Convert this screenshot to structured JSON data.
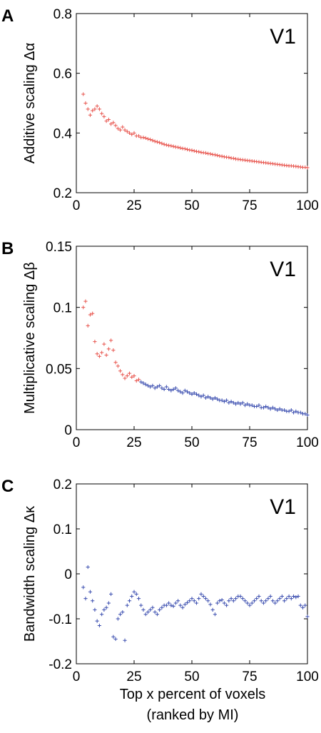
{
  "figure": {
    "xlabel_line1": "Top x percent of voxels",
    "xlabel_line2": "(ranked by MI)"
  },
  "colors": {
    "red": "#e8564f",
    "blue": "#3c4fb0",
    "axis": "#000000"
  },
  "chart_data": [
    {
      "type": "scatter",
      "panel_letter": "A",
      "region": "V1",
      "ylabel": "Additive scaling Δα",
      "xlim": [
        0,
        100
      ],
      "ylim": [
        0.2,
        0.8
      ],
      "xticks": [
        0,
        25,
        50,
        75,
        100
      ],
      "xtick_labels": [
        "0",
        "25",
        "50",
        "75",
        "100"
      ],
      "yticks": [
        0.2,
        0.4,
        0.6,
        0.8
      ],
      "ytick_labels": [
        "0.2",
        "0.4",
        "0.6",
        "0.8"
      ],
      "marker": "+",
      "series": [
        {
          "color": "red",
          "x": [
            3,
            4,
            5,
            6,
            7,
            8,
            9,
            10,
            11,
            12,
            13,
            14,
            15,
            16,
            17,
            18,
            19,
            20,
            21,
            22,
            23,
            24,
            25,
            26,
            27,
            28,
            29,
            30,
            31,
            32,
            33,
            34,
            35,
            36,
            37,
            38,
            39,
            40,
            41,
            42,
            43,
            44,
            45,
            46,
            47,
            48,
            49,
            50,
            51,
            52,
            53,
            54,
            55,
            56,
            57,
            58,
            59,
            60,
            61,
            62,
            63,
            64,
            65,
            66,
            67,
            68,
            69,
            70,
            71,
            72,
            73,
            74,
            75,
            76,
            77,
            78,
            79,
            80,
            81,
            82,
            83,
            84,
            85,
            86,
            87,
            88,
            89,
            90,
            91,
            92,
            93,
            94,
            95,
            96,
            97,
            98,
            99,
            100
          ],
          "y": [
            0.53,
            0.5,
            0.48,
            0.46,
            0.475,
            0.48,
            0.49,
            0.48,
            0.465,
            0.455,
            0.44,
            0.445,
            0.43,
            0.435,
            0.425,
            0.415,
            0.41,
            0.42,
            0.41,
            0.405,
            0.4,
            0.395,
            0.4,
            0.39,
            0.39,
            0.385,
            0.385,
            0.383,
            0.38,
            0.378,
            0.375,
            0.372,
            0.37,
            0.368,
            0.365,
            0.362,
            0.36,
            0.358,
            0.357,
            0.355,
            0.353,
            0.352,
            0.35,
            0.348,
            0.347,
            0.345,
            0.343,
            0.342,
            0.34,
            0.338,
            0.337,
            0.335,
            0.334,
            0.333,
            0.331,
            0.33,
            0.328,
            0.327,
            0.325,
            0.323,
            0.322,
            0.32,
            0.319,
            0.318,
            0.316,
            0.315,
            0.313,
            0.312,
            0.311,
            0.31,
            0.309,
            0.308,
            0.307,
            0.306,
            0.305,
            0.304,
            0.303,
            0.302,
            0.301,
            0.3,
            0.299,
            0.298,
            0.297,
            0.296,
            0.295,
            0.294,
            0.293,
            0.292,
            0.291,
            0.29,
            0.29,
            0.289,
            0.288,
            0.287,
            0.286,
            0.285,
            0.285,
            0.284
          ]
        }
      ]
    },
    {
      "type": "scatter",
      "panel_letter": "B",
      "region": "V1",
      "ylabel": "Multiplicative scaling Δβ",
      "xlim": [
        0,
        100
      ],
      "ylim": [
        0,
        0.15
      ],
      "xticks": [
        0,
        25,
        50,
        75,
        100
      ],
      "xtick_labels": [
        "0",
        "25",
        "50",
        "75",
        "100"
      ],
      "yticks": [
        0,
        0.05,
        0.1,
        0.15
      ],
      "ytick_labels": [
        "0",
        "0.05",
        "0.1",
        "0.15"
      ],
      "marker": "+",
      "series": [
        {
          "color": "red",
          "x": [
            3,
            4,
            5,
            6,
            7,
            8,
            9,
            10,
            11,
            12,
            13,
            14,
            15,
            16,
            17,
            18,
            19,
            20,
            21,
            22,
            23,
            24,
            25,
            26,
            27
          ],
          "y": [
            0.1,
            0.105,
            0.085,
            0.094,
            0.095,
            0.072,
            0.062,
            0.06,
            0.063,
            0.07,
            0.061,
            0.066,
            0.073,
            0.065,
            0.055,
            0.052,
            0.048,
            0.045,
            0.042,
            0.044,
            0.046,
            0.043,
            0.044,
            0.04,
            0.041
          ]
        },
        {
          "color": "blue",
          "x": [
            28,
            29,
            30,
            31,
            32,
            33,
            34,
            35,
            36,
            37,
            38,
            39,
            40,
            41,
            42,
            43,
            44,
            45,
            46,
            47,
            48,
            49,
            50,
            51,
            52,
            53,
            54,
            55,
            56,
            57,
            58,
            59,
            60,
            61,
            62,
            63,
            64,
            65,
            66,
            67,
            68,
            69,
            70,
            71,
            72,
            73,
            74,
            75,
            76,
            77,
            78,
            79,
            80,
            81,
            82,
            83,
            84,
            85,
            86,
            87,
            88,
            89,
            90,
            91,
            92,
            93,
            94,
            95,
            96,
            97,
            98,
            99,
            100
          ],
          "y": [
            0.039,
            0.038,
            0.037,
            0.036,
            0.035,
            0.036,
            0.034,
            0.035,
            0.036,
            0.034,
            0.033,
            0.035,
            0.033,
            0.032,
            0.033,
            0.034,
            0.032,
            0.031,
            0.03,
            0.032,
            0.031,
            0.03,
            0.029,
            0.03,
            0.029,
            0.028,
            0.027,
            0.028,
            0.026,
            0.027,
            0.026,
            0.025,
            0.026,
            0.025,
            0.024,
            0.024,
            0.023,
            0.024,
            0.022,
            0.023,
            0.022,
            0.021,
            0.022,
            0.021,
            0.022,
            0.02,
            0.021,
            0.02,
            0.02,
            0.019,
            0.019,
            0.02,
            0.018,
            0.018,
            0.019,
            0.018,
            0.017,
            0.018,
            0.017,
            0.016,
            0.017,
            0.016,
            0.016,
            0.015,
            0.015,
            0.016,
            0.014,
            0.015,
            0.014,
            0.014,
            0.013,
            0.013,
            0.012
          ]
        }
      ]
    },
    {
      "type": "scatter",
      "panel_letter": "C",
      "region": "V1",
      "ylabel": "Bandwidth scaling Δκ",
      "xlim": [
        0,
        100
      ],
      "ylim": [
        -0.2,
        0.2
      ],
      "xticks": [
        0,
        25,
        50,
        75,
        100
      ],
      "xtick_labels": [
        "0",
        "25",
        "50",
        "75",
        "100"
      ],
      "yticks": [
        -0.2,
        -0.1,
        0,
        0.1,
        0.2
      ],
      "ytick_labels": [
        "-0.2",
        "-0.1",
        "0",
        "0.1",
        "0.2"
      ],
      "marker": "+",
      "series": [
        {
          "color": "blue",
          "x": [
            3,
            4,
            5,
            6,
            7,
            8,
            9,
            10,
            11,
            12,
            13,
            14,
            15,
            16,
            17,
            18,
            19,
            20,
            21,
            22,
            23,
            24,
            25,
            26,
            27,
            28,
            29,
            30,
            31,
            32,
            33,
            34,
            35,
            36,
            37,
            38,
            39,
            40,
            41,
            42,
            43,
            44,
            45,
            46,
            47,
            48,
            49,
            50,
            51,
            52,
            53,
            54,
            55,
            56,
            57,
            58,
            59,
            60,
            61,
            62,
            63,
            64,
            65,
            66,
            67,
            68,
            69,
            70,
            71,
            72,
            73,
            74,
            75,
            76,
            77,
            78,
            79,
            80,
            81,
            82,
            83,
            84,
            85,
            86,
            87,
            88,
            89,
            90,
            91,
            92,
            93,
            94,
            95,
            96,
            97,
            98,
            99,
            100
          ],
          "y": [
            -0.03,
            -0.055,
            0.015,
            -0.04,
            -0.06,
            -0.08,
            -0.105,
            -0.115,
            -0.09,
            -0.08,
            -0.075,
            -0.065,
            -0.045,
            -0.14,
            -0.145,
            -0.1,
            -0.09,
            -0.085,
            -0.148,
            -0.07,
            -0.06,
            -0.05,
            -0.04,
            -0.045,
            -0.055,
            -0.07,
            -0.08,
            -0.09,
            -0.085,
            -0.08,
            -0.075,
            -0.085,
            -0.09,
            -0.08,
            -0.075,
            -0.07,
            -0.07,
            -0.065,
            -0.07,
            -0.072,
            -0.065,
            -0.06,
            -0.07,
            -0.075,
            -0.068,
            -0.064,
            -0.06,
            -0.055,
            -0.06,
            -0.065,
            -0.055,
            -0.045,
            -0.05,
            -0.055,
            -0.06,
            -0.068,
            -0.08,
            -0.09,
            -0.065,
            -0.06,
            -0.058,
            -0.065,
            -0.07,
            -0.06,
            -0.055,
            -0.06,
            -0.055,
            -0.05,
            -0.05,
            -0.055,
            -0.06,
            -0.065,
            -0.07,
            -0.065,
            -0.06,
            -0.055,
            -0.05,
            -0.06,
            -0.065,
            -0.06,
            -0.055,
            -0.05,
            -0.06,
            -0.065,
            -0.06,
            -0.055,
            -0.05,
            -0.06,
            -0.055,
            -0.05,
            -0.055,
            -0.05,
            -0.052,
            -0.05,
            -0.07,
            -0.075,
            -0.07,
            -0.095
          ]
        }
      ]
    }
  ]
}
